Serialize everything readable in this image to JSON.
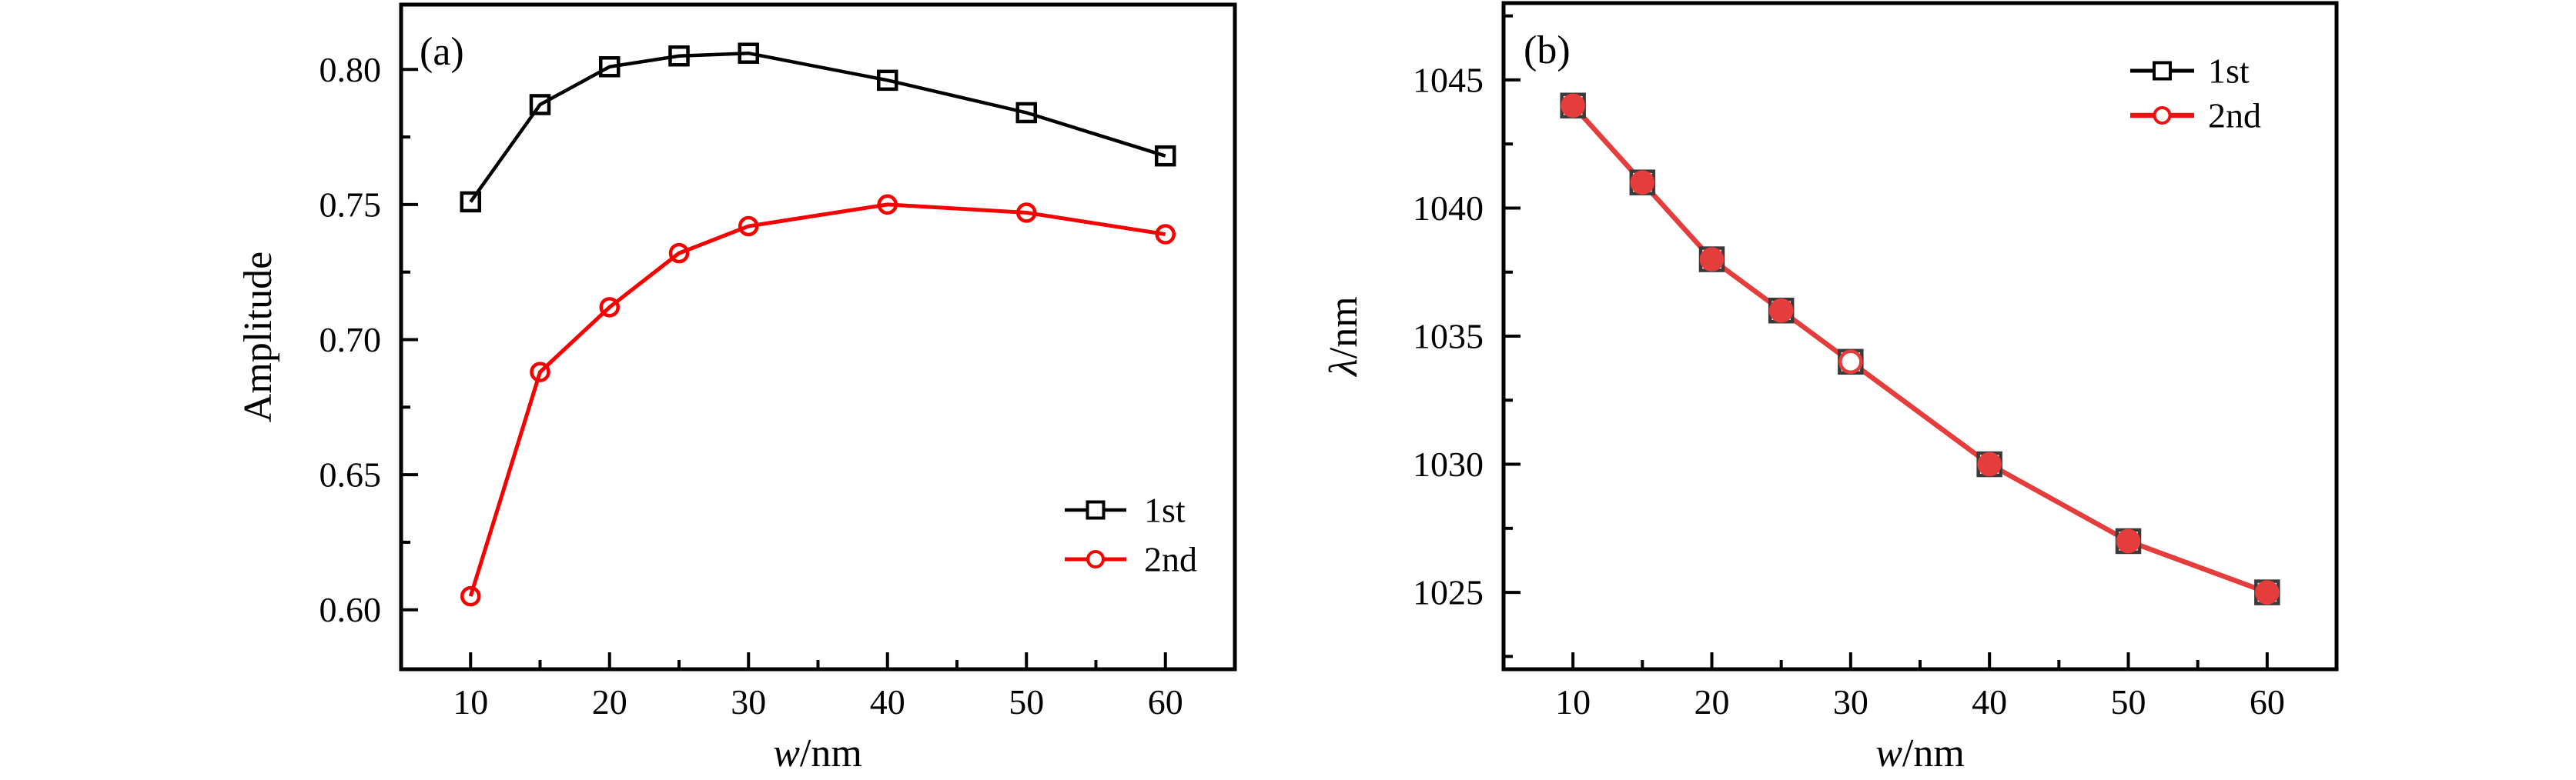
{
  "figure_bg": "#ffffff",
  "text_color": "#000000",
  "chart_data": [
    {
      "id": "a",
      "type": "line",
      "panel_tag": "(a)",
      "xlabel_segments": [
        {
          "text": "w",
          "italic": true
        },
        {
          "text": "/nm",
          "italic": false
        }
      ],
      "ylabel_segments": [
        {
          "text": "Amplitude",
          "italic": false
        }
      ],
      "xlim": [
        5,
        65
      ],
      "ylim": [
        0.578,
        0.824
      ],
      "grid": false,
      "x": [
        10,
        15,
        20,
        25,
        30,
        40,
        50,
        60
      ],
      "xticks": {
        "major": [
          10,
          20,
          30,
          40,
          50,
          60
        ],
        "minor": [
          15,
          25,
          35,
          45,
          55
        ],
        "labels": [
          "10",
          "20",
          "30",
          "40",
          "50",
          "60"
        ]
      },
      "yticks": {
        "major": [
          0.6,
          0.65,
          0.7,
          0.75,
          0.8
        ],
        "minor": [
          0.625,
          0.675,
          0.725,
          0.775
        ],
        "labels": [
          "0.60",
          "0.65",
          "0.70",
          "0.75",
          "0.80"
        ]
      },
      "legend": {
        "position": "inside right",
        "entries": [
          "1st",
          "2nd"
        ]
      },
      "series": [
        {
          "name": "1st",
          "color": "#000000",
          "legend_color": "#000000",
          "line_width": 4.5,
          "marker": "square",
          "marker_size": 23,
          "marker_stroke": "#000000",
          "marker_fill": "none",
          "open_points": [],
          "values": [
            0.751,
            0.787,
            0.801,
            0.805,
            0.806,
            0.796,
            0.784,
            0.768
          ]
        },
        {
          "name": "2nd",
          "color": "#f70000",
          "legend_color": "#f70000",
          "line_width": 5,
          "marker": "circle",
          "marker_size": 22,
          "marker_stroke": "#f70000",
          "marker_fill": "none",
          "open_points": [],
          "values": [
            0.605,
            0.688,
            0.712,
            0.732,
            0.742,
            0.75,
            0.747,
            0.739
          ]
        }
      ]
    },
    {
      "id": "b",
      "type": "line",
      "panel_tag": "(b)",
      "xlabel_segments": [
        {
          "text": "w",
          "italic": true
        },
        {
          "text": "/nm",
          "italic": false
        }
      ],
      "ylabel_segments": [
        {
          "text": "λ",
          "italic": true
        },
        {
          "text": "/nm",
          "italic": false
        }
      ],
      "xlim": [
        5,
        65
      ],
      "ylim": [
        1022,
        1048
      ],
      "grid": false,
      "x": [
        10,
        15,
        20,
        25,
        30,
        40,
        50,
        60
      ],
      "xticks": {
        "major": [
          10,
          20,
          30,
          40,
          50,
          60
        ],
        "minor": [
          15,
          25,
          35,
          45,
          55
        ],
        "labels": [
          "10",
          "20",
          "30",
          "40",
          "50",
          "60"
        ]
      },
      "yticks": {
        "major": [
          1025,
          1030,
          1035,
          1040,
          1045
        ],
        "minor": [
          1022.5,
          1027.5,
          1032.5,
          1037.5,
          1042.5,
          1047.5
        ],
        "labels": [
          "1025",
          "1030",
          "1035",
          "1040",
          "1045"
        ]
      },
      "legend": {
        "position": "inside upper right",
        "entries": [
          "1st",
          "2nd"
        ]
      },
      "series": [
        {
          "name": "1st",
          "color": "#000000",
          "legend_color": "#000000",
          "line_width": 5,
          "marker": "square",
          "marker_size": 29,
          "marker_stroke": "#3a3a3a",
          "marker_fill": "#ffffff",
          "open_points": [],
          "values": [
            1044,
            1041,
            1038,
            1036,
            1034,
            1030,
            1027,
            1025
          ]
        },
        {
          "name": "2nd",
          "color": "#e43d3c",
          "legend_color": "#ed1111",
          "line_width": 6.5,
          "marker": "circle",
          "marker_size": 27,
          "marker_stroke": "#e43d3c",
          "marker_fill": "#e43d3c",
          "open_points": [
            30
          ],
          "values": [
            1044,
            1041,
            1038,
            1036,
            1034,
            1030,
            1027,
            1025
          ]
        }
      ]
    }
  ]
}
